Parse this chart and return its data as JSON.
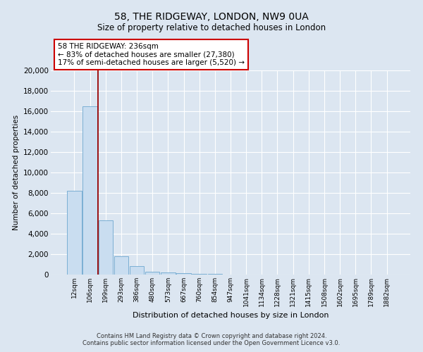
{
  "title": "58, THE RIDGEWAY, LONDON, NW9 0UA",
  "subtitle": "Size of property relative to detached houses in London",
  "xlabel": "Distribution of detached houses by size in London",
  "ylabel": "Number of detached properties",
  "bar_labels": [
    "12sqm",
    "106sqm",
    "199sqm",
    "293sqm",
    "386sqm",
    "480sqm",
    "573sqm",
    "667sqm",
    "760sqm",
    "854sqm",
    "947sqm",
    "1041sqm",
    "1134sqm",
    "1228sqm",
    "1321sqm",
    "1415sqm",
    "1508sqm",
    "1602sqm",
    "1695sqm",
    "1789sqm",
    "1882sqm"
  ],
  "bar_values": [
    8200,
    16500,
    5300,
    1800,
    800,
    300,
    200,
    150,
    100,
    80,
    0,
    0,
    0,
    0,
    0,
    0,
    0,
    0,
    0,
    0,
    0
  ],
  "bar_color": "#c9ddf0",
  "bar_edge_color": "#7bafd4",
  "background_color": "#dce6f1",
  "plot_bg_color": "#dce6f1",
  "grid_color": "#ffffff",
  "red_line_color": "#990000",
  "annotation_line1": "58 THE RIDGEWAY: 236sqm",
  "annotation_line2": "← 83% of detached houses are smaller (27,380)",
  "annotation_line3": "17% of semi-detached houses are larger (5,520) →",
  "annotation_box_color": "#ffffff",
  "annotation_box_edge_color": "#cc0000",
  "ylim": [
    0,
    20000
  ],
  "yticks": [
    0,
    2000,
    4000,
    6000,
    8000,
    10000,
    12000,
    14000,
    16000,
    18000,
    20000
  ],
  "footnote1": "Contains HM Land Registry data © Crown copyright and database right 2024.",
  "footnote2": "Contains public sector information licensed under the Open Government Licence v3.0."
}
